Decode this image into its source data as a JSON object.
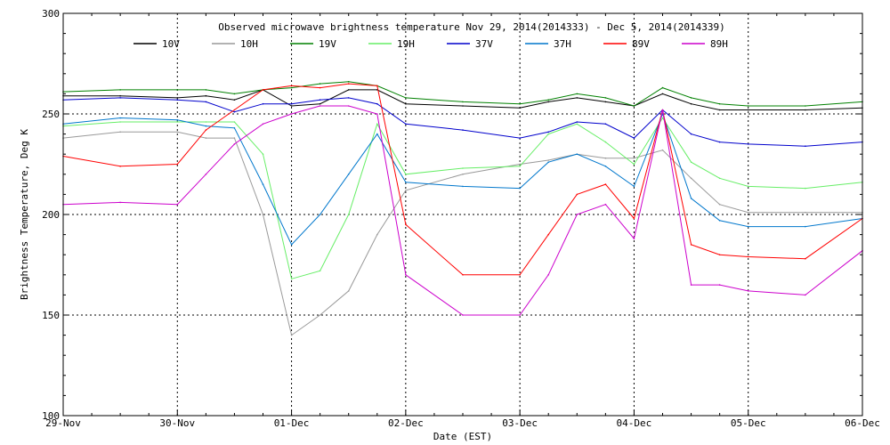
{
  "chart_data": {
    "type": "line",
    "title": "Observed microwave brightness temperature Nov 29, 2014(2014333) - Dec  5, 2014(2014339)",
    "xlabel": "Date (EST)",
    "ylabel": "Brightness Temperature, Deg K",
    "xlim": [
      "2014-11-29 00:00",
      "2014-12-06 00:00"
    ],
    "ylim": [
      100,
      300
    ],
    "x_ticks": [
      "29-Nov",
      "30-Nov",
      "01-Dec",
      "02-Dec",
      "03-Dec",
      "04-Dec",
      "05-Dec",
      "06-Dec"
    ],
    "y_ticks": [
      100,
      150,
      200,
      250,
      300
    ],
    "grid": true,
    "legend_placement": "top",
    "x": [
      "2014-11-29 00:00",
      "2014-11-29 12:00",
      "2014-11-30 00:00",
      "2014-11-30 06:00",
      "2014-11-30 12:00",
      "2014-11-30 18:00",
      "2014-12-01 00:00",
      "2014-12-01 06:00",
      "2014-12-01 12:00",
      "2014-12-01 18:00",
      "2014-12-02 00:00",
      "2014-12-02 12:00",
      "2014-12-03 00:00",
      "2014-12-03 06:00",
      "2014-12-03 12:00",
      "2014-12-03 18:00",
      "2014-12-04 00:00",
      "2014-12-04 06:00",
      "2014-12-04 12:00",
      "2014-12-04 18:00",
      "2014-12-05 00:00",
      "2014-12-05 12:00",
      "2014-12-06 00:00"
    ],
    "series": [
      {
        "name": "10V",
        "color": "#000000",
        "values": [
          259,
          259,
          258,
          259,
          257,
          262,
          254,
          255,
          262,
          262,
          255,
          254,
          253,
          256,
          258,
          256,
          254,
          260,
          255,
          252,
          252,
          252,
          253
        ]
      },
      {
        "name": "10H",
        "color": "#999999",
        "values": [
          238,
          241,
          241,
          238,
          238,
          200,
          140,
          150,
          162,
          190,
          212,
          220,
          225,
          227,
          230,
          228,
          228,
          232,
          218,
          205,
          201,
          201,
          201
        ]
      },
      {
        "name": "19V",
        "color": "#008000",
        "values": [
          261,
          262,
          262,
          262,
          260,
          262,
          263,
          265,
          266,
          264,
          258,
          256,
          255,
          257,
          260,
          258,
          254,
          263,
          258,
          255,
          254,
          254,
          256
        ]
      },
      {
        "name": "19H",
        "color": "#66ee66",
        "values": [
          244,
          246,
          246,
          246,
          246,
          230,
          168,
          172,
          200,
          245,
          220,
          223,
          224,
          240,
          245,
          236,
          225,
          248,
          226,
          218,
          214,
          213,
          216
        ]
      },
      {
        "name": "37V",
        "color": "#0000cc",
        "values": [
          257,
          258,
          257,
          256,
          251,
          255,
          255,
          257,
          258,
          255,
          245,
          242,
          238,
          241,
          246,
          245,
          238,
          252,
          240,
          236,
          235,
          234,
          236
        ]
      },
      {
        "name": "37H",
        "color": "#0077cc",
        "values": [
          245,
          248,
          247,
          244,
          243,
          215,
          185,
          200,
          220,
          240,
          216,
          214,
          213,
          226,
          230,
          224,
          214,
          250,
          208,
          197,
          194,
          194,
          198
        ]
      },
      {
        "name": "89V",
        "color": "#ff0000",
        "values": [
          229,
          224,
          225,
          242,
          252,
          262,
          264,
          263,
          265,
          264,
          195,
          170,
          170,
          190,
          210,
          215,
          198,
          252,
          185,
          180,
          179,
          178,
          198
        ]
      },
      {
        "name": "89H",
        "color": "#cc00cc",
        "values": [
          205,
          206,
          205,
          220,
          235,
          245,
          250,
          254,
          254,
          250,
          170,
          150,
          150,
          170,
          200,
          205,
          188,
          252,
          165,
          165,
          162,
          160,
          182
        ]
      }
    ]
  }
}
